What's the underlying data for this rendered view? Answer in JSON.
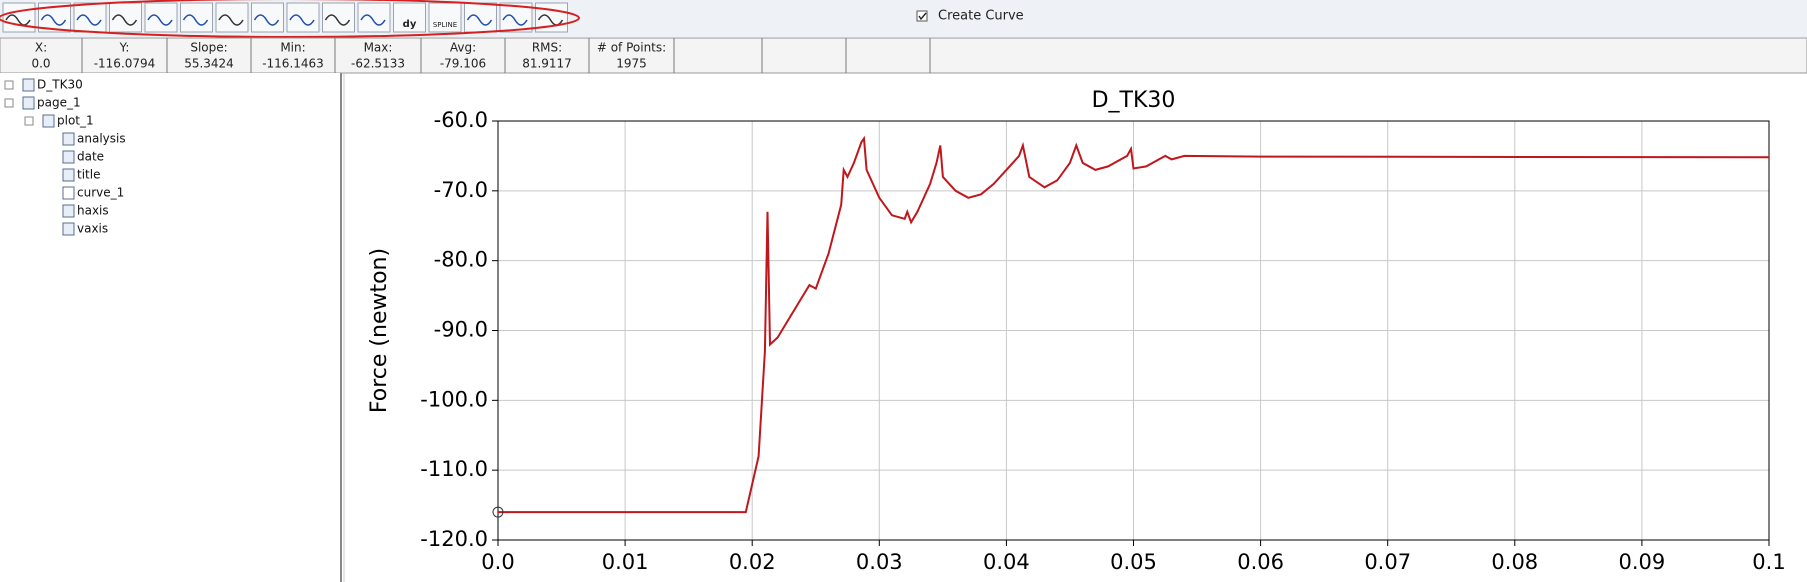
{
  "toolbar": {
    "create_curve": "Create Curve",
    "derivative_label": "dy",
    "spline_label": "SPLINE"
  },
  "stats": [
    {
      "label": "X:",
      "value": "0.0"
    },
    {
      "label": "Y:",
      "value": "-116.0794"
    },
    {
      "label": "Slope:",
      "value": "55.3424"
    },
    {
      "label": "Min:",
      "value": "-116.1463"
    },
    {
      "label": "Max:",
      "value": "-62.5133"
    },
    {
      "label": "Avg:",
      "value": "-79.106"
    },
    {
      "label": "RMS:",
      "value": "81.9117"
    },
    {
      "label": "# of Points:",
      "value": "1975"
    }
  ],
  "tree": [
    "D_TK30",
    "page_1",
    "plot_1",
    "analysis",
    "date",
    "title",
    "curve_1",
    "haxis",
    "vaxis"
  ],
  "chart_data": {
    "type": "line",
    "title": "D_TK30",
    "y_label": "Force (newton)",
    "xlim": [
      0,
      0.1
    ],
    "ylim": [
      -120,
      -60
    ],
    "grid": true,
    "xticks": [
      {
        "value": 0,
        "label": "0.0"
      },
      0.01,
      0.02,
      0.03,
      0.04,
      0.05,
      0.06,
      0.07,
      0.08,
      0.09,
      0.1
    ],
    "yticks": [
      {
        "value": -120,
        "label": "-120.0"
      },
      {
        "value": -110,
        "label": "-110.0"
      },
      {
        "value": -100,
        "label": "-100.0"
      },
      {
        "value": -90,
        "label": "-90.0"
      },
      {
        "value": -80,
        "label": "-80.0"
      },
      {
        "value": -70,
        "label": "-70.0"
      },
      {
        "value": -60,
        "label": "-60.0"
      }
    ],
    "series": [
      {
        "name": "curve_1",
        "color": "#c0161c",
        "x": [
          0,
          0.0195,
          0.0205,
          0.021,
          0.0212,
          0.0214,
          0.022,
          0.024,
          0.0245,
          0.025,
          0.026,
          0.027,
          0.0272,
          0.0275,
          0.028,
          0.0286,
          0.0288,
          0.029,
          0.03,
          0.031,
          0.032,
          0.0322,
          0.0325,
          0.033,
          0.034,
          0.0345,
          0.0348,
          0.035,
          0.036,
          0.037,
          0.038,
          0.039,
          0.04,
          0.041,
          0.0413,
          0.0418,
          0.043,
          0.044,
          0.045,
          0.0455,
          0.046,
          0.047,
          0.048,
          0.0495,
          0.0498,
          0.05,
          0.051,
          0.052,
          0.0525,
          0.053,
          0.054,
          0.06,
          0.1
        ],
        "values": [
          -116,
          -116,
          -108,
          -93,
          -73,
          -92,
          -91,
          -85,
          -83.5,
          -84,
          -79,
          -72,
          -67,
          -68,
          -66,
          -63,
          -62.5,
          -67,
          -71,
          -73.5,
          -74,
          -73,
          -74.5,
          -73,
          -69,
          -66,
          -63.5,
          -68,
          -70,
          -71,
          -70.5,
          -69,
          -67,
          -65,
          -63.5,
          -68,
          -69.5,
          -68.5,
          -66,
          -63.5,
          -66,
          -67,
          -66.5,
          -65,
          -64,
          -66.8,
          -66.5,
          -65.5,
          -65,
          -65.5,
          -65,
          -65.1,
          -65.2
        ]
      }
    ]
  }
}
